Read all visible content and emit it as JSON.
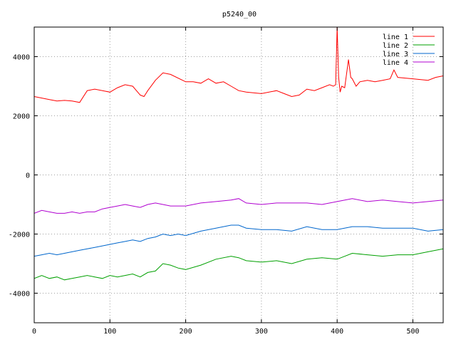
{
  "chart_data": {
    "type": "line",
    "title": "p5240_00",
    "xlabel": "",
    "ylabel": "",
    "xlim": [
      0,
      540
    ],
    "ylim": [
      -5000,
      5000
    ],
    "xticks": [
      0,
      100,
      200,
      300,
      400,
      500
    ],
    "yticks": [
      -4000,
      -2000,
      0,
      2000,
      4000
    ],
    "grid": true,
    "legend_position": "top-right",
    "series": [
      {
        "name": "line 1",
        "color": "#ff0000",
        "x": [
          0,
          10,
          20,
          30,
          40,
          50,
          60,
          70,
          80,
          100,
          110,
          120,
          130,
          140,
          145,
          150,
          160,
          170,
          180,
          200,
          210,
          220,
          230,
          240,
          250,
          260,
          270,
          280,
          300,
          320,
          330,
          340,
          350,
          360,
          370,
          380,
          390,
          395,
          398,
          400,
          402,
          404,
          406,
          410,
          415,
          418,
          420,
          425,
          430,
          440,
          450,
          460,
          470,
          475,
          480,
          500,
          520,
          530,
          540
        ],
        "y": [
          2650,
          2600,
          2550,
          2500,
          2520,
          2500,
          2450,
          2850,
          2900,
          2800,
          2950,
          3050,
          3000,
          2700,
          2650,
          2850,
          3200,
          3450,
          3400,
          3150,
          3150,
          3100,
          3250,
          3100,
          3150,
          3000,
          2850,
          2800,
          2750,
          2850,
          2750,
          2650,
          2700,
          2900,
          2850,
          2950,
          3050,
          3000,
          3050,
          5000,
          3300,
          2800,
          3000,
          2950,
          3900,
          3300,
          3250,
          3000,
          3150,
          3200,
          3150,
          3200,
          3250,
          3550,
          3300,
          3250,
          3200,
          3300,
          3350
        ]
      },
      {
        "name": "line 2",
        "color": "#00a000",
        "x": [
          0,
          10,
          20,
          30,
          40,
          50,
          60,
          70,
          80,
          90,
          100,
          110,
          120,
          130,
          140,
          150,
          160,
          170,
          180,
          190,
          200,
          220,
          240,
          260,
          270,
          280,
          300,
          320,
          340,
          360,
          380,
          400,
          420,
          440,
          460,
          480,
          500,
          520,
          540
        ],
        "y": [
          -3500,
          -3400,
          -3500,
          -3450,
          -3550,
          -3500,
          -3450,
          -3400,
          -3450,
          -3500,
          -3400,
          -3450,
          -3400,
          -3350,
          -3450,
          -3300,
          -3250,
          -3000,
          -3050,
          -3150,
          -3200,
          -3050,
          -2850,
          -2750,
          -2800,
          -2900,
          -2950,
          -2900,
          -3000,
          -2850,
          -2800,
          -2850,
          -2650,
          -2700,
          -2750,
          -2700,
          -2700,
          -2600,
          -2500
        ]
      },
      {
        "name": "line 3",
        "color": "#0066cc",
        "x": [
          0,
          10,
          20,
          30,
          40,
          50,
          60,
          70,
          80,
          90,
          100,
          110,
          120,
          130,
          140,
          150,
          160,
          170,
          180,
          190,
          200,
          220,
          240,
          250,
          260,
          270,
          280,
          300,
          320,
          340,
          360,
          380,
          400,
          420,
          440,
          460,
          480,
          500,
          520,
          540
        ],
        "y": [
          -2750,
          -2700,
          -2650,
          -2700,
          -2650,
          -2600,
          -2550,
          -2500,
          -2450,
          -2400,
          -2350,
          -2300,
          -2250,
          -2200,
          -2250,
          -2150,
          -2100,
          -2000,
          -2050,
          -2000,
          -2050,
          -1900,
          -1800,
          -1750,
          -1700,
          -1700,
          -1800,
          -1850,
          -1850,
          -1900,
          -1750,
          -1850,
          -1850,
          -1750,
          -1750,
          -1800,
          -1800,
          -1800,
          -1900,
          -1850
        ]
      },
      {
        "name": "line 4",
        "color": "#b000d0",
        "x": [
          0,
          10,
          20,
          30,
          40,
          50,
          60,
          70,
          80,
          90,
          100,
          110,
          120,
          130,
          140,
          150,
          160,
          170,
          180,
          190,
          200,
          220,
          240,
          260,
          270,
          280,
          300,
          320,
          340,
          360,
          380,
          400,
          420,
          440,
          460,
          480,
          500,
          520,
          540
        ],
        "y": [
          -1300,
          -1200,
          -1250,
          -1300,
          -1300,
          -1250,
          -1300,
          -1250,
          -1250,
          -1150,
          -1100,
          -1050,
          -1000,
          -1050,
          -1100,
          -1000,
          -950,
          -1000,
          -1050,
          -1050,
          -1050,
          -950,
          -900,
          -850,
          -800,
          -950,
          -1000,
          -950,
          -950,
          -950,
          -1000,
          -900,
          -800,
          -900,
          -850,
          -900,
          -950,
          -900,
          -850
        ]
      }
    ]
  }
}
